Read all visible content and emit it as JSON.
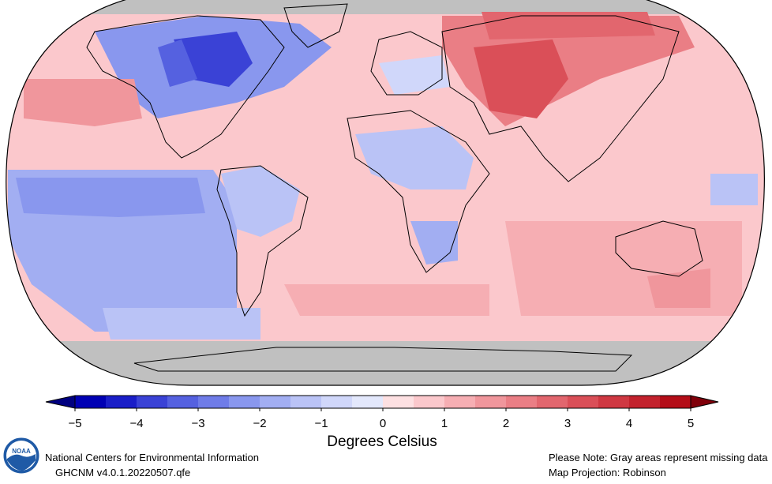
{
  "map": {
    "projection_note": "Map Projection: Robinson",
    "missing_note": "Please Note: Gray areas represent missing data",
    "colors": {
      "missing": "#c0c0c0",
      "ocean_default": "#fbc8cc",
      "coastline": "#000000"
    }
  },
  "colorbar": {
    "title": "Degrees Celsius",
    "ticks": [
      "−5",
      "−4",
      "−3",
      "−2",
      "−1",
      "0",
      "1",
      "2",
      "3",
      "4",
      "5"
    ],
    "min": -5,
    "max": 5,
    "colors": [
      "#0000b4",
      "#1a1ec8",
      "#3a42d6",
      "#5561e0",
      "#6f7ce8",
      "#8997ee",
      "#a2aef2",
      "#bac3f6",
      "#d0d7fa",
      "#e3e8fc",
      "#fde0e2",
      "#fbc8cc",
      "#f6aeb3",
      "#f0969c",
      "#ea7e85",
      "#e2666e",
      "#da4f58",
      "#cf3842",
      "#c3222d",
      "#b40d18"
    ]
  },
  "footer": {
    "org_name": "National Centers for Environmental Information",
    "dataset": "GHCNM v4.0.1.20220507.qfe",
    "logo_text": "NOAA"
  }
}
